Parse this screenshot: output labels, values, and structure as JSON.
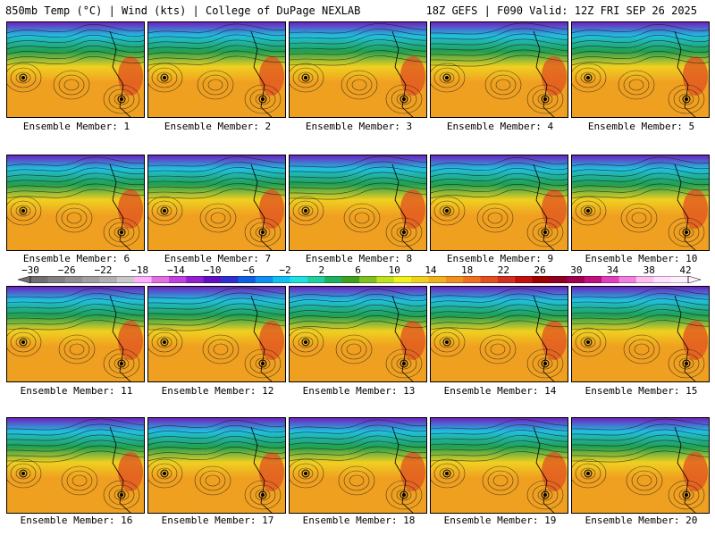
{
  "header": {
    "left": "850mb Temp (°C) | Wind (kts) | College of DuPage NEXLAB",
    "right": "18Z GEFS | F090 Valid: 12Z FRI SEP 26 2025"
  },
  "members": [
    {
      "label": "Ensemble Member: 1"
    },
    {
      "label": "Ensemble Member: 2"
    },
    {
      "label": "Ensemble Member: 3"
    },
    {
      "label": "Ensemble Member: 4"
    },
    {
      "label": "Ensemble Member: 5"
    },
    {
      "label": "Ensemble Member: 6"
    },
    {
      "label": "Ensemble Member: 7"
    },
    {
      "label": "Ensemble Member: 8"
    },
    {
      "label": "Ensemble Member: 9"
    },
    {
      "label": "Ensemble Member: 10"
    },
    {
      "label": "Ensemble Member: 11"
    },
    {
      "label": "Ensemble Member: 12"
    },
    {
      "label": "Ensemble Member: 13"
    },
    {
      "label": "Ensemble Member: 14"
    },
    {
      "label": "Ensemble Member: 15"
    },
    {
      "label": "Ensemble Member: 16"
    },
    {
      "label": "Ensemble Member: 17"
    },
    {
      "label": "Ensemble Member: 18"
    },
    {
      "label": "Ensemble Member: 19"
    },
    {
      "label": "Ensemble Member: 20"
    }
  ],
  "colorbar": {
    "ticks": [
      "-30",
      "-26",
      "-22",
      "-18",
      "-14",
      "-10",
      "-6",
      "-2",
      "2",
      "6",
      "10",
      "14",
      "18",
      "22",
      "26",
      "30",
      "34",
      "38",
      "42"
    ],
    "colors": [
      "#707070",
      "#808080",
      "#909090",
      "#a0a0a0",
      "#b0b0b0",
      "#c8c8c8",
      "#ffb0ff",
      "#e070e0",
      "#c040e0",
      "#9020d0",
      "#6010c0",
      "#3030d0",
      "#1060e0",
      "#1090f0",
      "#10c0f0",
      "#20e0e0",
      "#20d0a0",
      "#20b060",
      "#40a020",
      "#80c020",
      "#c0e020",
      "#f0f020",
      "#f0d020",
      "#f0b020",
      "#f09020",
      "#f07020",
      "#e05020",
      "#d03020",
      "#c01010",
      "#a00000",
      "#900020",
      "#a00050",
      "#c01080",
      "#e040c0",
      "#f080e0",
      "#ffc0f0",
      "#ffe0ff",
      "#fff0ff"
    ]
  },
  "map_colors": {
    "cold": "#7020c0",
    "cool": "#20c0e0",
    "mild": "#20a050",
    "warm": "#f0d020",
    "hot": "#f0a020",
    "very_hot": "#e05020"
  }
}
